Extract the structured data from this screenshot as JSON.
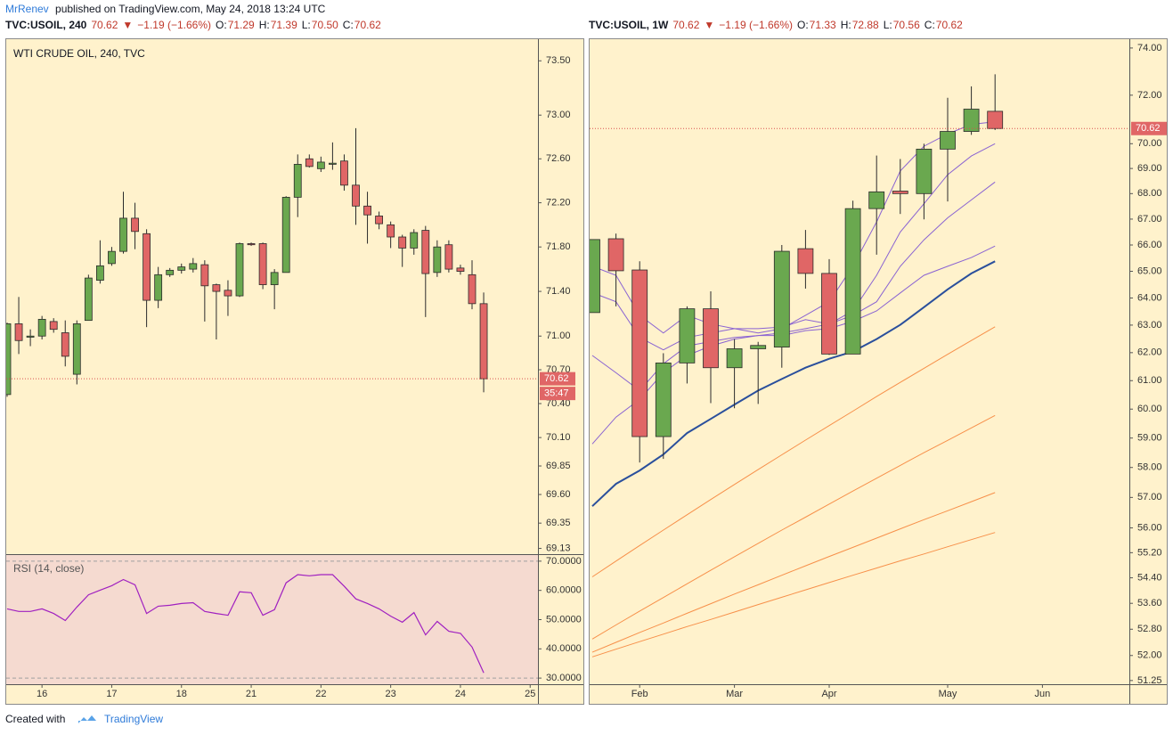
{
  "header": {
    "author": "MrRenev",
    "text": "published on TradingView.com, May 24, 2018 13:24 UTC"
  },
  "footer": {
    "text": "Created with",
    "brand": "TradingView"
  },
  "chart_data": [
    {
      "type": "candlestick",
      "title": "WTI CRUDE OIL, 240, TVC",
      "log": true,
      "quote": [
        {
          "text": "TVC:USOIL, 240",
          "color": "#131722"
        },
        {
          "text": "70.62",
          "color": "#c0392b"
        },
        {
          "text": "▼",
          "color": "#c0392b"
        },
        {
          "text": "−1.19 (−1.66%)",
          "color": "#c0392b"
        },
        {
          "text": "O:",
          "color": "#131722"
        },
        {
          "text": "71.29",
          "color": "#c0392b"
        },
        {
          "text": "H:",
          "color": "#131722"
        },
        {
          "text": "71.39",
          "color": "#c0392b"
        },
        {
          "text": "L:",
          "color": "#131722"
        },
        {
          "text": "70.50",
          "color": "#c0392b"
        },
        {
          "text": "C:",
          "color": "#131722"
        },
        {
          "text": "70.62",
          "color": "#c0392b"
        }
      ],
      "up_color": "#6aa84f",
      "down_color": "#e06666",
      "open": [
        70.48,
        71.11,
        70.99,
        71.0,
        71.13,
        71.03,
        70.66,
        71.14,
        71.5,
        71.65,
        71.76,
        72.06,
        71.92,
        71.32,
        71.55,
        71.59,
        71.6,
        71.64,
        71.46,
        71.41,
        71.36,
        71.83,
        71.83,
        71.46,
        71.57,
        72.25,
        72.6,
        72.51,
        72.55,
        72.58,
        72.36,
        72.17,
        72.08,
        72.0,
        71.89,
        71.79,
        71.95,
        71.57,
        71.82,
        71.61,
        71.55,
        71.29,
        null,
        null,
        null,
        null
      ],
      "high": [
        71.12,
        71.35,
        71.06,
        71.18,
        71.16,
        71.14,
        71.14,
        71.55,
        71.86,
        71.8,
        72.3,
        72.2,
        71.96,
        71.62,
        71.61,
        71.65,
        71.7,
        71.68,
        71.47,
        71.5,
        71.84,
        71.84,
        71.84,
        71.6,
        72.26,
        72.64,
        72.64,
        72.62,
        72.75,
        72.64,
        72.88,
        72.3,
        72.12,
        72.03,
        71.91,
        71.96,
        71.99,
        71.86,
        71.86,
        71.64,
        71.68,
        71.39,
        null,
        null,
        null,
        null
      ],
      "low": [
        70.46,
        70.84,
        70.91,
        70.97,
        71.03,
        70.73,
        70.57,
        71.14,
        71.47,
        71.63,
        71.74,
        71.78,
        71.08,
        71.25,
        71.53,
        71.56,
        71.57,
        71.13,
        70.97,
        71.18,
        71.35,
        71.81,
        71.42,
        71.24,
        71.57,
        72.07,
        72.52,
        72.48,
        72.5,
        72.31,
        72.0,
        71.83,
        71.96,
        71.79,
        71.62,
        71.73,
        71.17,
        71.53,
        71.57,
        71.55,
        71.24,
        70.5,
        null,
        null,
        null,
        null
      ],
      "close": [
        71.11,
        70.96,
        71.0,
        71.15,
        71.06,
        70.82,
        71.11,
        71.52,
        71.63,
        71.76,
        72.06,
        71.94,
        71.32,
        71.55,
        71.59,
        71.62,
        71.65,
        71.45,
        71.4,
        71.36,
        71.83,
        71.82,
        71.46,
        71.57,
        72.25,
        72.55,
        72.53,
        72.57,
        72.56,
        72.36,
        72.17,
        72.09,
        72.01,
        71.89,
        71.79,
        71.93,
        71.56,
        71.8,
        71.6,
        71.58,
        71.29,
        70.62,
        null,
        null,
        null,
        null
      ],
      "ylim": [
        69.08,
        73.7
      ],
      "yticks": [
        {
          "value": 73.5,
          "label": "73.50"
        },
        {
          "value": 73,
          "label": "73.00"
        },
        {
          "value": 72.6,
          "label": "72.60"
        },
        {
          "value": 72.2,
          "label": "72.20"
        },
        {
          "value": 71.8,
          "label": "71.80"
        },
        {
          "value": 71.4,
          "label": "71.40"
        },
        {
          "value": 71,
          "label": "71.00"
        },
        {
          "value": 70.7,
          "label": "70.70"
        },
        {
          "value": 70.4,
          "label": "70.40"
        },
        {
          "value": 70.1,
          "label": "70.10"
        },
        69.85,
        {
          "value": 69.6,
          "label": "69.60"
        },
        69.35,
        69.13
      ],
      "last_price": 70.62,
      "countdown": "35:47"
    },
    {
      "type": "line",
      "title": "RSI (14, close)",
      "color": "#a020c0",
      "categories": [
        null,
        null,
        null,
        "16",
        null,
        null,
        null,
        null,
        null,
        "17",
        null,
        null,
        null,
        null,
        null,
        "18",
        null,
        null,
        null,
        null,
        null,
        "21",
        null,
        null,
        null,
        null,
        null,
        "22",
        null,
        null,
        null,
        null,
        null,
        "23",
        null,
        null,
        null,
        null,
        null,
        "24",
        null,
        null,
        null,
        null,
        null,
        "25"
      ],
      "values": [
        53.7,
        52.8,
        52.8,
        53.7,
        52.1,
        49.7,
        54.3,
        58.5,
        60.1,
        61.6,
        63.7,
        61.9,
        52.1,
        54.6,
        54.9,
        55.5,
        55.8,
        52.8,
        52.1,
        51.5,
        59.5,
        59.2,
        51.5,
        53.4,
        62.6,
        65.4,
        65.0,
        65.4,
        65.4,
        61.4,
        57.1,
        55.5,
        53.7,
        51.2,
        49.1,
        52.4,
        44.8,
        49.4,
        46.0,
        45.3,
        40.6,
        31.8,
        null,
        null,
        null,
        null
      ],
      "ylim": [
        27.9,
        72.4
      ],
      "yticks": [
        {
          "value": 70,
          "label": "70.0000"
        },
        {
          "value": 60,
          "label": "60.0000"
        },
        {
          "value": 50,
          "label": "50.0000"
        },
        {
          "value": 40,
          "label": "40.0000"
        },
        {
          "value": 30,
          "label": "30.0000"
        }
      ],
      "band": [
        30,
        70
      ]
    },
    {
      "type": "candlestick",
      "log": true,
      "quote": [
        {
          "text": "TVC:USOIL, 1W",
          "color": "#131722"
        },
        {
          "text": "70.62",
          "color": "#c0392b"
        },
        {
          "text": "▼",
          "color": "#c0392b"
        },
        {
          "text": "−1.19 (−1.66%)",
          "color": "#c0392b"
        },
        {
          "text": "O:",
          "color": "#131722"
        },
        {
          "text": "71.33",
          "color": "#c0392b"
        },
        {
          "text": "H:",
          "color": "#131722"
        },
        {
          "text": "72.88",
          "color": "#c0392b"
        },
        {
          "text": "L:",
          "color": "#131722"
        },
        {
          "text": "70.56",
          "color": "#c0392b"
        },
        {
          "text": "C:",
          "color": "#131722"
        },
        {
          "text": "70.62",
          "color": "#c0392b"
        }
      ],
      "up_color": "#6aa84f",
      "down_color": "#e06666",
      "categories": [
        null,
        null,
        "Feb",
        null,
        null,
        null,
        "Mar",
        null,
        null,
        null,
        "Apr",
        null,
        null,
        null,
        null,
        "May",
        null,
        null,
        null,
        "Jun",
        null,
        null,
        null
      ],
      "open": [
        63.46,
        66.24,
        65.05,
        59.05,
        61.63,
        63.6,
        61.46,
        62.14,
        62.2,
        65.86,
        64.92,
        61.95,
        67.41,
        68.1,
        68.0,
        69.78,
        70.5,
        71.33,
        null,
        null,
        null,
        null,
        null
      ],
      "high": [
        66.21,
        66.44,
        65.38,
        61.98,
        63.69,
        64.25,
        62.49,
        62.39,
        66.0,
        66.58,
        65.46,
        67.72,
        69.52,
        69.38,
        70.0,
        71.89,
        72.37,
        72.88,
        null,
        null,
        null,
        null,
        null
      ],
      "low": [
        63.46,
        63.69,
        58.17,
        58.29,
        60.9,
        60.21,
        60.03,
        60.18,
        61.46,
        64.35,
        61.92,
        61.95,
        65.63,
        67.2,
        66.99,
        67.69,
        70.36,
        70.56,
        null,
        null,
        null,
        null,
        null
      ],
      "close": [
        66.21,
        65.02,
        59.05,
        61.63,
        63.6,
        61.46,
        62.14,
        62.26,
        65.76,
        64.92,
        61.95,
        67.41,
        68.07,
        68.0,
        69.78,
        70.5,
        71.42,
        70.62,
        null,
        null,
        null,
        null,
        null
      ],
      "lines": [
        {
          "color": "#f7904a",
          "width": 1,
          "values": [
            54.43,
            54.93,
            55.43,
            55.93,
            56.43,
            56.93,
            57.43,
            57.93,
            58.43,
            58.93,
            59.43,
            59.93,
            60.44,
            60.94,
            61.44,
            61.94,
            62.44,
            62.94,
            null,
            null,
            null,
            null,
            null
          ]
        },
        {
          "color": "#f7904a",
          "width": 1,
          "values": [
            52.5,
            52.93,
            53.36,
            53.78,
            54.21,
            54.64,
            55.07,
            55.5,
            55.93,
            56.35,
            56.78,
            57.21,
            57.64,
            58.07,
            58.5,
            58.92,
            59.35,
            59.78,
            null,
            null,
            null,
            null,
            null
          ]
        },
        {
          "color": "#f7904a",
          "width": 1,
          "values": [
            52.1,
            52.4,
            52.7,
            52.99,
            53.29,
            53.59,
            53.89,
            54.18,
            54.48,
            54.78,
            55.08,
            55.37,
            55.67,
            55.97,
            56.27,
            56.56,
            56.86,
            57.16,
            null,
            null,
            null,
            null,
            null
          ]
        },
        {
          "color": "#f7904a",
          "width": 1,
          "values": [
            51.96,
            52.19,
            52.42,
            52.65,
            52.88,
            53.1,
            53.33,
            53.56,
            53.79,
            54.02,
            54.25,
            54.48,
            54.71,
            54.94,
            55.16,
            55.39,
            55.62,
            55.85,
            null,
            null,
            null,
            null,
            null
          ]
        },
        {
          "color": "#8a63d2",
          "width": 1,
          "values": [
            65.19,
            64.85,
            63.36,
            62.71,
            63.36,
            63.04,
            62.87,
            62.71,
            62.87,
            63.36,
            63.86,
            65.19,
            66.89,
            68.9,
            69.9,
            70.4,
            70.79,
            70.9,
            null,
            null,
            null,
            null,
            null
          ]
        },
        {
          "color": "#8a63d2",
          "width": 1,
          "values": [
            64.2,
            63.86,
            62.55,
            62.1,
            62.55,
            62.71,
            62.87,
            62.87,
            62.93,
            63.2,
            63.04,
            63.52,
            64.85,
            66.5,
            67.6,
            68.75,
            69.5,
            70.0,
            null,
            null,
            null,
            null,
            null
          ]
        },
        {
          "color": "#8a63d2",
          "width": 1,
          "values": [
            61.9,
            61.28,
            60.65,
            61.6,
            62.24,
            62.4,
            62.55,
            62.62,
            62.71,
            62.87,
            63.04,
            63.36,
            63.86,
            65.19,
            66.2,
            67.05,
            67.75,
            68.46,
            null,
            null,
            null,
            null,
            null
          ]
        },
        {
          "color": "#8a63d2",
          "width": 1,
          "values": [
            58.8,
            59.72,
            60.34,
            61.28,
            61.9,
            62.24,
            62.49,
            62.62,
            62.62,
            62.8,
            62.87,
            63.14,
            63.52,
            64.19,
            64.85,
            65.19,
            65.52,
            65.96,
            null,
            null,
            null,
            null,
            null
          ]
        },
        {
          "color": "#2a4f9c",
          "width": 2,
          "values": [
            56.71,
            57.45,
            57.9,
            58.44,
            59.17,
            59.66,
            60.16,
            60.65,
            61.06,
            61.46,
            61.78,
            62.04,
            62.49,
            63.01,
            63.66,
            64.32,
            64.92,
            65.38,
            null,
            null,
            null,
            null,
            null
          ]
        }
      ],
      "ylim": [
        51.14,
        74.38
      ],
      "yticks": [
        {
          "value": 74,
          "label": "74.00"
        },
        {
          "value": 72,
          "label": "72.00"
        },
        {
          "value": 70,
          "label": "70.00"
        },
        {
          "value": 69,
          "label": "69.00"
        },
        {
          "value": 68,
          "label": "68.00"
        },
        {
          "value": 67,
          "label": "67.00"
        },
        {
          "value": 66,
          "label": "66.00"
        },
        {
          "value": 65,
          "label": "65.00"
        },
        {
          "value": 64,
          "label": "64.00"
        },
        {
          "value": 63,
          "label": "63.00"
        },
        {
          "value": 62,
          "label": "62.00"
        },
        {
          "value": 61,
          "label": "61.00"
        },
        {
          "value": 60,
          "label": "60.00"
        },
        {
          "value": 59,
          "label": "59.00"
        },
        {
          "value": 58,
          "label": "58.00"
        },
        {
          "value": 57,
          "label": "57.00"
        },
        {
          "value": 56,
          "label": "56.00"
        },
        {
          "value": 55.2,
          "label": "55.20"
        },
        {
          "value": 54.4,
          "label": "54.40"
        },
        {
          "value": 53.6,
          "label": "53.60"
        },
        {
          "value": 52.8,
          "label": "52.80"
        },
        {
          "value": 52,
          "label": "52.00"
        },
        51.25
      ],
      "last_price": 70.62
    }
  ]
}
